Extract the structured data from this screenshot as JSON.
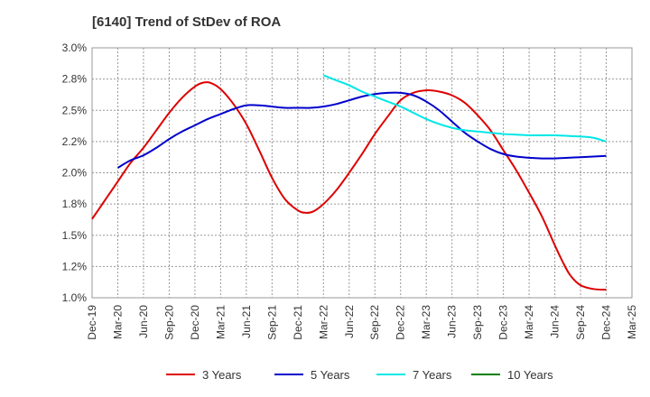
{
  "chart_data": {
    "type": "line",
    "title": "[6140]  Trend of StDev of ROA",
    "xlabel": "",
    "ylabel": "",
    "x_categories": [
      "Dec-19",
      "Mar-20",
      "Jun-20",
      "Sep-20",
      "Dec-20",
      "Mar-21",
      "Jun-21",
      "Sep-21",
      "Dec-21",
      "Mar-22",
      "Jun-22",
      "Sep-22",
      "Dec-22",
      "Mar-23",
      "Jun-23",
      "Sep-23",
      "Dec-23",
      "Mar-24",
      "Jun-24",
      "Sep-24",
      "Dec-24",
      "Mar-25"
    ],
    "y_ticks": [
      "3.0%",
      "2.8%",
      "2.5%",
      "2.2%",
      "2.0%",
      "1.8%",
      "1.5%",
      "1.2%",
      "1.0%"
    ],
    "y_tick_values": [
      3.0,
      2.75,
      2.5,
      2.25,
      2.0,
      1.75,
      1.5,
      1.25,
      1.0
    ],
    "ylim": [
      1.0,
      3.0
    ],
    "grid": true,
    "legend_position": "bottom",
    "series": [
      {
        "name": "3 Years",
        "color": "#dd0000",
        "x": [
          0,
          0.5,
          1,
          1.5,
          2,
          2.5,
          3,
          3.5,
          4,
          4.3,
          4.6,
          5,
          5.5,
          6,
          6.5,
          7,
          7.5,
          8,
          8.3,
          8.6,
          9,
          9.5,
          10,
          10.5,
          11,
          11.5,
          12,
          12.5,
          13,
          13.5,
          14,
          14.5,
          15,
          15.5,
          16,
          16.5,
          17,
          17.5,
          18,
          18.3,
          18.6,
          19,
          19.5,
          20
        ],
        "values": [
          1.63,
          1.78,
          1.93,
          2.08,
          2.2,
          2.34,
          2.48,
          2.6,
          2.69,
          2.72,
          2.72,
          2.67,
          2.55,
          2.39,
          2.18,
          1.96,
          1.79,
          1.7,
          1.68,
          1.69,
          1.75,
          1.86,
          2.0,
          2.15,
          2.31,
          2.45,
          2.58,
          2.64,
          2.66,
          2.65,
          2.62,
          2.56,
          2.46,
          2.34,
          2.18,
          2.02,
          1.84,
          1.65,
          1.42,
          1.29,
          1.18,
          1.1,
          1.07,
          1.065
        ]
      },
      {
        "name": "5 Years",
        "color": "#0000cc",
        "x": [
          1,
          1.5,
          2,
          2.5,
          3,
          3.5,
          4,
          4.5,
          5,
          5.5,
          6,
          6.5,
          7,
          7.5,
          8,
          8.5,
          9,
          9.5,
          10,
          10.5,
          11,
          11.5,
          12,
          12.5,
          13,
          13.5,
          14,
          14.5,
          15,
          15.5,
          16,
          16.5,
          17,
          17.5,
          18,
          18.5,
          19,
          19.5,
          20
        ],
        "values": [
          2.04,
          2.1,
          2.14,
          2.2,
          2.27,
          2.33,
          2.38,
          2.43,
          2.47,
          2.51,
          2.54,
          2.54,
          2.53,
          2.52,
          2.52,
          2.52,
          2.53,
          2.55,
          2.58,
          2.61,
          2.63,
          2.64,
          2.64,
          2.62,
          2.57,
          2.5,
          2.41,
          2.32,
          2.25,
          2.19,
          2.15,
          2.13,
          2.12,
          2.115,
          2.115,
          2.12,
          2.125,
          2.13,
          2.135
        ]
      },
      {
        "name": "7 Years",
        "color": "#00e6e6",
        "x": [
          9,
          9.5,
          10,
          10.5,
          11,
          11.5,
          12,
          12.5,
          13,
          13.5,
          14,
          14.5,
          15,
          15.5,
          16,
          16.5,
          17,
          17.5,
          18,
          18.5,
          19,
          19.5,
          20
        ],
        "values": [
          2.78,
          2.74,
          2.7,
          2.65,
          2.61,
          2.57,
          2.53,
          2.48,
          2.43,
          2.39,
          2.36,
          2.34,
          2.33,
          2.32,
          2.31,
          2.305,
          2.3,
          2.3,
          2.3,
          2.295,
          2.29,
          2.28,
          2.25
        ]
      },
      {
        "name": "10 Years",
        "color": "#008000",
        "x": [],
        "values": []
      }
    ]
  }
}
